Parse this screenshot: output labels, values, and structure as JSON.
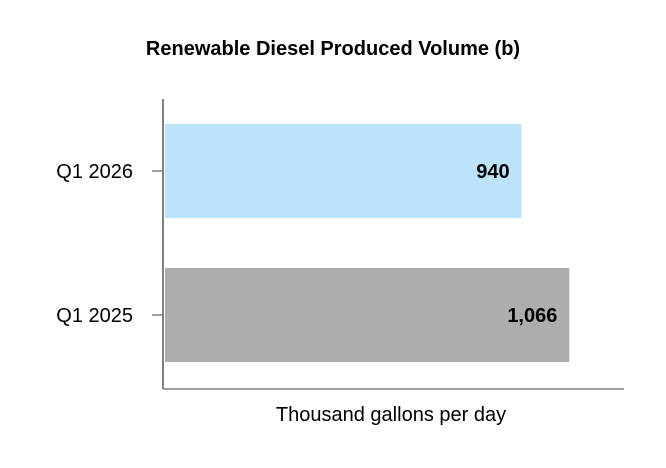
{
  "chart_data": {
    "type": "bar",
    "orientation": "horizontal",
    "title": "Renewable Diesel Produced Volume (b)",
    "xlabel": "Thousand gallons per day",
    "ylabel": "",
    "categories": [
      "Q1 2026",
      "Q1 2025"
    ],
    "values": [
      940,
      1066
    ],
    "value_labels": [
      "940",
      "1,066"
    ],
    "bar_colors": [
      "#bde3fb",
      "#adadad"
    ],
    "xlim": [
      0,
      1210
    ],
    "grid": false,
    "legend": "none"
  }
}
